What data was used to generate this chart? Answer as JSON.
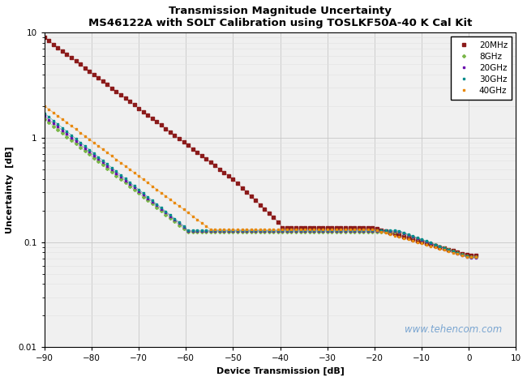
{
  "title_line1": "Transmission Magnitude Uncertainty",
  "title_line2": "MS46122A with SOLT Calibration using TOSLKF50A-40 K Cal Kit",
  "xlabel": "Device Transmission [dB]",
  "ylabel": "Uncertainty  [dB]",
  "xlim": [
    -90,
    10
  ],
  "ylim": [
    0.01,
    10
  ],
  "xticks": [
    -90,
    -80,
    -70,
    -60,
    -50,
    -40,
    -30,
    -20,
    -10,
    0,
    10
  ],
  "watermark": "www.tehencom.com",
  "bg_color": "#f0f0f0",
  "grid_major_color": "#c8c8c8",
  "grid_minor_color": "#e0e0e0",
  "series": [
    {
      "label": "20MHz",
      "color": "#8B1A1A",
      "marker": "s",
      "markersize": 2.5
    },
    {
      "label": "8GHz",
      "color": "#7AB648",
      "marker": "D",
      "markersize": 2.0
    },
    {
      "label": "20GHz",
      "color": "#6A0DAD",
      "marker": "s",
      "markersize": 2.0
    },
    {
      "label": "30GHz",
      "color": "#008B8B",
      "marker": "s",
      "markersize": 2.0
    },
    {
      "label": "40GHz",
      "color": "#E8890C",
      "marker": "s",
      "markersize": 2.0
    }
  ]
}
